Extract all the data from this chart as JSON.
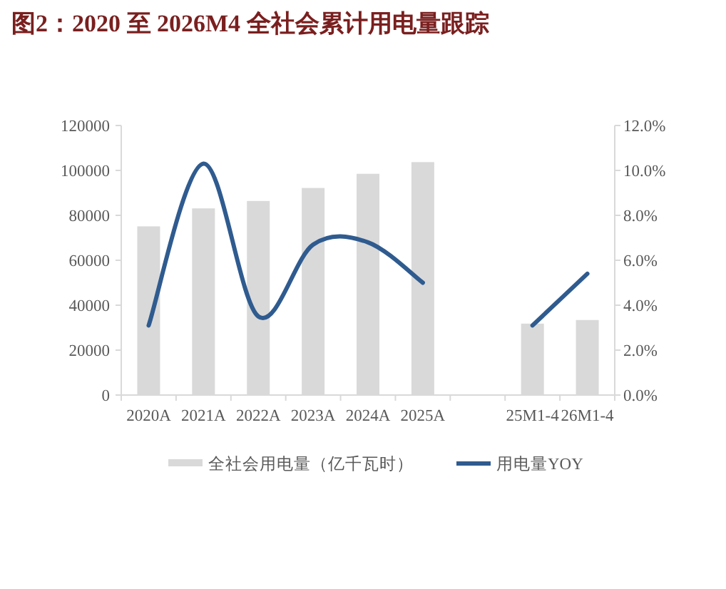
{
  "chart_data": {
    "type": "bar",
    "title": "图2：2020 至 2026M4 全社会累计用电量跟踪",
    "categories": [
      "2020A",
      "2021A",
      "2022A",
      "2023A",
      "2024A",
      "2025A",
      null,
      "25M1-4",
      "26M1-4"
    ],
    "series": [
      {
        "name": "全社会用电量（亿千瓦时）",
        "color": "#d9d9d9",
        "values": [
          75100,
          83100,
          86400,
          92200,
          98500,
          103700,
          null,
          31800,
          33400
        ]
      },
      {
        "name": "用电量YOY",
        "type": "line",
        "axis": "y2",
        "color": "#2f5b8f",
        "values": [
          3.1,
          10.3,
          3.5,
          6.7,
          6.8,
          5.0,
          null,
          3.1,
          5.4
        ]
      }
    ],
    "ylim": [
      0,
      120000
    ],
    "yticks": [
      0,
      20000,
      40000,
      60000,
      80000,
      100000,
      120000
    ],
    "y2lim": [
      0,
      12
    ],
    "y2ticks": [
      {
        "value": 0,
        "label": "0.0%"
      },
      {
        "value": 2,
        "label": "2.0%"
      },
      {
        "value": 4,
        "label": "4.0%"
      },
      {
        "value": 6,
        "label": "6.0%"
      },
      {
        "value": 8,
        "label": "8.0%"
      },
      {
        "value": 10,
        "label": "10.0%"
      },
      {
        "value": 12,
        "label": "12.0%"
      }
    ],
    "legend": "bottom"
  }
}
